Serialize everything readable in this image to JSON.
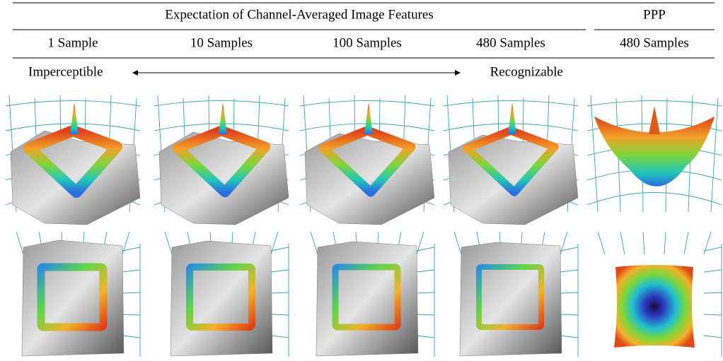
{
  "header": {
    "title": "Expectation of Channel-Averaged Image Features",
    "ppp": "PPP"
  },
  "columns": [
    "1 Sample",
    "10 Samples",
    "100 Samples",
    "480 Samples",
    "480 Samples"
  ],
  "scale": {
    "left": "Imperceptible",
    "right": "Recognizable"
  }
}
